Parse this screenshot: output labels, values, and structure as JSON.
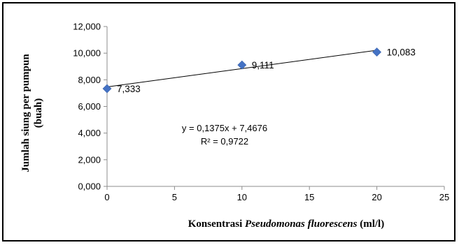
{
  "chart_data": {
    "type": "scatter",
    "x": [
      0,
      10,
      20
    ],
    "y": [
      7.333,
      9.111,
      10.083
    ],
    "point_labels": [
      "7,333",
      "9,111",
      "10,083"
    ],
    "xlim": [
      0,
      25
    ],
    "ylim": [
      0,
      12
    ],
    "x_ticks": [
      0,
      5,
      10,
      15,
      20,
      25
    ],
    "x_tick_labels": [
      "0",
      "5",
      "10",
      "15",
      "20",
      "25"
    ],
    "y_ticks": [
      0,
      2,
      4,
      6,
      8,
      10,
      12
    ],
    "y_tick_labels": [
      "0,000",
      "2,000",
      "4,000",
      "6,000",
      "8,000",
      "10,000",
      "12,000"
    ],
    "xlabel": {
      "prefix": "Konsentrasi ",
      "italic": "Pseudomonas fluorescens",
      "suffix": " (ml/l)"
    },
    "ylabel_line1": "Jumlah siung per pumpun",
    "ylabel_line2": "(buah)",
    "trendline": {
      "slope": 0.1375,
      "intercept": 7.4676,
      "equation": "y = 0,1375x + 7,4676",
      "r_squared": "R² = 0,9722"
    },
    "grid": false,
    "legend": "none",
    "marker": "diamond",
    "marker_color": "#4472C4",
    "trendline_color": "#000000"
  }
}
